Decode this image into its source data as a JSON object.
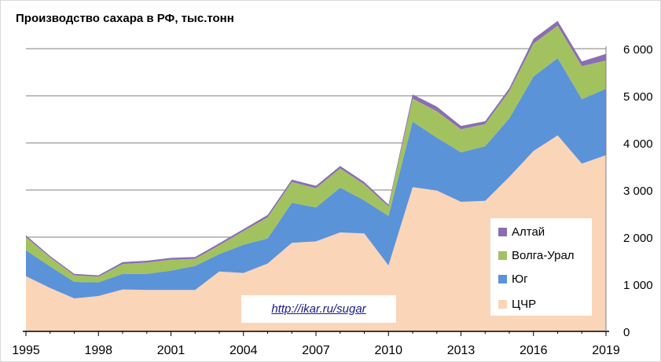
{
  "chart_data": {
    "type": "area",
    "stacked": true,
    "title": "Производство сахара в РФ, тыс.тонн",
    "x": [
      1995,
      1996,
      1997,
      1998,
      1999,
      2000,
      2001,
      2002,
      2003,
      2004,
      2005,
      2006,
      2007,
      2008,
      2009,
      2010,
      2011,
      2012,
      2013,
      2014,
      2015,
      2016,
      2017,
      2018,
      2019
    ],
    "x_tick_labels": [
      "1995",
      "1998",
      "2001",
      "2004",
      "2007",
      "2010",
      "2013",
      "2016",
      "2019"
    ],
    "y_tick_labels": [
      "0",
      "1 000",
      "2 000",
      "3 000",
      "4 000",
      "5 000",
      "6 000"
    ],
    "ylim": [
      0,
      6700
    ],
    "y_axis_side": "right",
    "grid": true,
    "legend_position": "right-bottom",
    "series": [
      {
        "name": "ЦЧР",
        "color": "#fbd5b8",
        "values": [
          1170,
          920,
          700,
          750,
          890,
          880,
          880,
          880,
          1270,
          1240,
          1440,
          1880,
          1910,
          2100,
          2080,
          1400,
          3060,
          2990,
          2750,
          2770,
          3280,
          3830,
          4160,
          3560,
          3740
        ]
      },
      {
        "name": "Юг",
        "color": "#5b93d8",
        "values": [
          550,
          460,
          350,
          290,
          330,
          340,
          410,
          510,
          370,
          600,
          530,
          850,
          720,
          950,
          700,
          1050,
          1390,
          1120,
          1050,
          1160,
          1240,
          1580,
          1640,
          1370,
          1410
        ]
      },
      {
        "name": "Волга-Урал",
        "color": "#a2c260",
        "values": [
          280,
          190,
          140,
          120,
          210,
          240,
          230,
          150,
          190,
          290,
          450,
          440,
          410,
          410,
          340,
          200,
          490,
          560,
          490,
          470,
          580,
          700,
          690,
          700,
          600
        ]
      },
      {
        "name": "Алтай",
        "color": "#8b6db4",
        "values": [
          40,
          30,
          30,
          30,
          40,
          40,
          40,
          40,
          40,
          40,
          50,
          50,
          50,
          50,
          50,
          40,
          90,
          100,
          70,
          60,
          60,
          100,
          100,
          100,
          140
        ]
      }
    ]
  },
  "source_link": "http://ikar.ru/sugar"
}
